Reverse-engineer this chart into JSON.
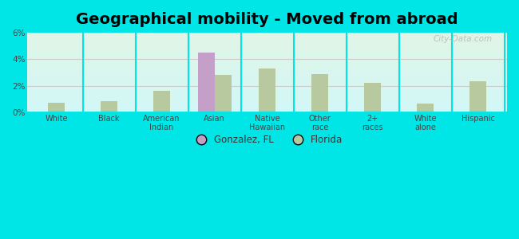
{
  "title": "Geographical mobility - Moved from abroad",
  "categories": [
    "White",
    "Black",
    "American\nIndian",
    "Asian",
    "Native\nHawaiian",
    "Other\nrace",
    "2+\nraces",
    "White\nalone",
    "Hispanic"
  ],
  "gonzalez_values": [
    null,
    null,
    null,
    4.5,
    null,
    null,
    null,
    null,
    null
  ],
  "florida_values": [
    0.7,
    0.8,
    1.6,
    2.8,
    3.3,
    2.9,
    2.2,
    0.65,
    2.35
  ],
  "gonzalez_color": "#c4a0c8",
  "florida_color": "#b8c9a0",
  "background_color": "#00e5e5",
  "ylim": [
    0,
    6
  ],
  "yticks": [
    0,
    2,
    4,
    6
  ],
  "ytick_labels": [
    "0%",
    "2%",
    "4%",
    "6%"
  ],
  "title_fontsize": 14,
  "bar_width": 0.32,
  "watermark": "City-Data.com"
}
